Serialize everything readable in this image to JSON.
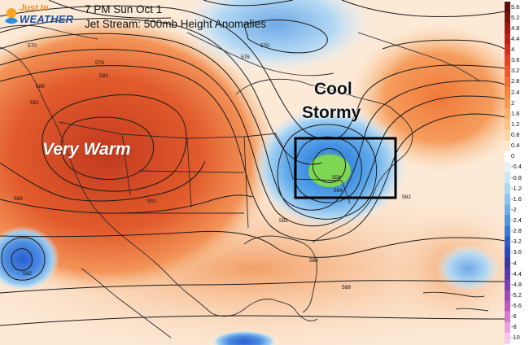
{
  "header": {
    "logo_line1": "Just In",
    "logo_line2": "WEATHER",
    "title_line1": "7 PM Sun Oct 1",
    "title_line2": "Jet Stream: 500mb Height Anomalies"
  },
  "annotations": {
    "warm_label": "Very Warm",
    "cool_label": "Cool",
    "stormy_label": "Stormy"
  },
  "contour_labels": [
    "570",
    "576",
    "582",
    "588",
    "591",
    "591",
    "588",
    "582",
    "576",
    "570",
    "558",
    "564",
    "582",
    "588",
    "588",
    "582"
  ],
  "colorbar": {
    "ticks": [
      "5.6",
      "5.2",
      "4.8",
      "4.4",
      "4",
      "3.6",
      "3.2",
      "2.8",
      "2.4",
      "2",
      "1.6",
      "1.2",
      "0.8",
      "0.4",
      "0",
      "-0.4",
      "-0.8",
      "-1.2",
      "-1.6",
      "-2",
      "-2.4",
      "-2.8",
      "-3.2",
      "-3.6",
      "-4",
      "-4.4",
      "-4.8",
      "-5.2",
      "-5.6",
      "-6",
      "-8",
      "-10"
    ],
    "colors": {
      "hot": "#c8321e",
      "warm": "#f07a3c",
      "mild": "#f7c08a",
      "neutral": "#ffffff",
      "cool": "#8fc8ee",
      "cold": "#2f6fd6",
      "stormy": "#8ed94c"
    }
  }
}
